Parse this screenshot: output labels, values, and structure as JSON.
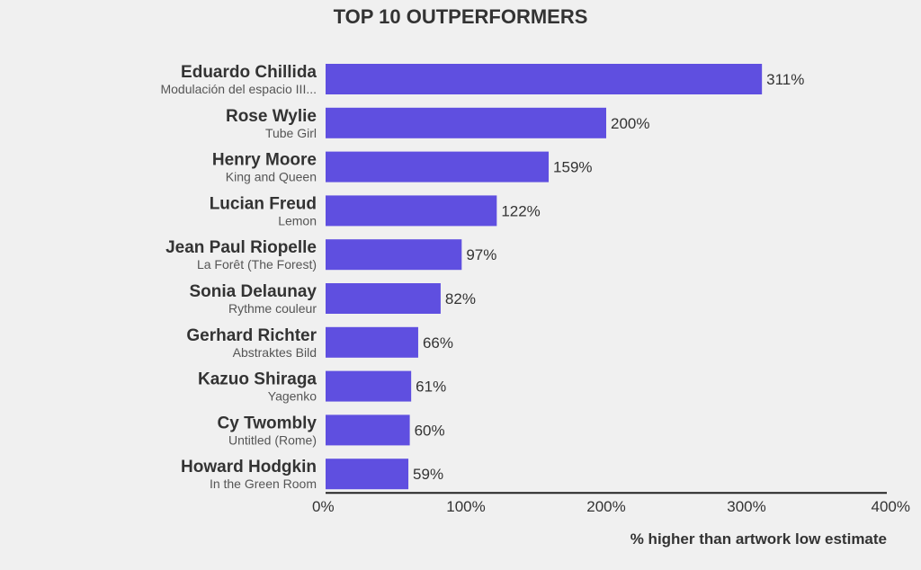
{
  "title": "TOP 10 OUTPERFORMERS",
  "chart_data": {
    "type": "bar",
    "orientation": "horizontal",
    "title": "TOP 10 OUTPERFORMERS",
    "xlabel": "% higher than artwork low estimate",
    "ylabel": "",
    "xlim": [
      0,
      400
    ],
    "ticks": [
      "0%",
      "100%",
      "200%",
      "300%",
      "400%"
    ],
    "tick_values": [
      0,
      100,
      200,
      300,
      400
    ],
    "bar_color": "#5f4fe0",
    "grid": false,
    "categories": [
      {
        "artist": "Eduardo Chillida",
        "artwork": "Modulación del espacio III...",
        "value": 311,
        "label": "311%"
      },
      {
        "artist": "Rose Wylie",
        "artwork": "Tube Girl",
        "value": 200,
        "label": "200%"
      },
      {
        "artist": "Henry Moore",
        "artwork": "King and Queen",
        "value": 159,
        "label": "159%"
      },
      {
        "artist": "Lucian Freud",
        "artwork": "Lemon",
        "value": 122,
        "label": "122%"
      },
      {
        "artist": "Jean Paul Riopelle",
        "artwork": "La Forêt (The Forest)",
        "value": 97,
        "label": "97%"
      },
      {
        "artist": "Sonia Delaunay",
        "artwork": "Rythme couleur",
        "value": 82,
        "label": "82%"
      },
      {
        "artist": "Gerhard Richter",
        "artwork": "Abstraktes Bild",
        "value": 66,
        "label": "66%"
      },
      {
        "artist": "Kazuo Shiraga",
        "artwork": "Yagenko",
        "value": 61,
        "label": "61%"
      },
      {
        "artist": "Cy Twombly",
        "artwork": "Untitled (Rome)",
        "value": 60,
        "label": "60%"
      },
      {
        "artist": "Howard Hodgkin",
        "artwork": "In the Green Room",
        "value": 59,
        "label": "59%"
      }
    ]
  }
}
